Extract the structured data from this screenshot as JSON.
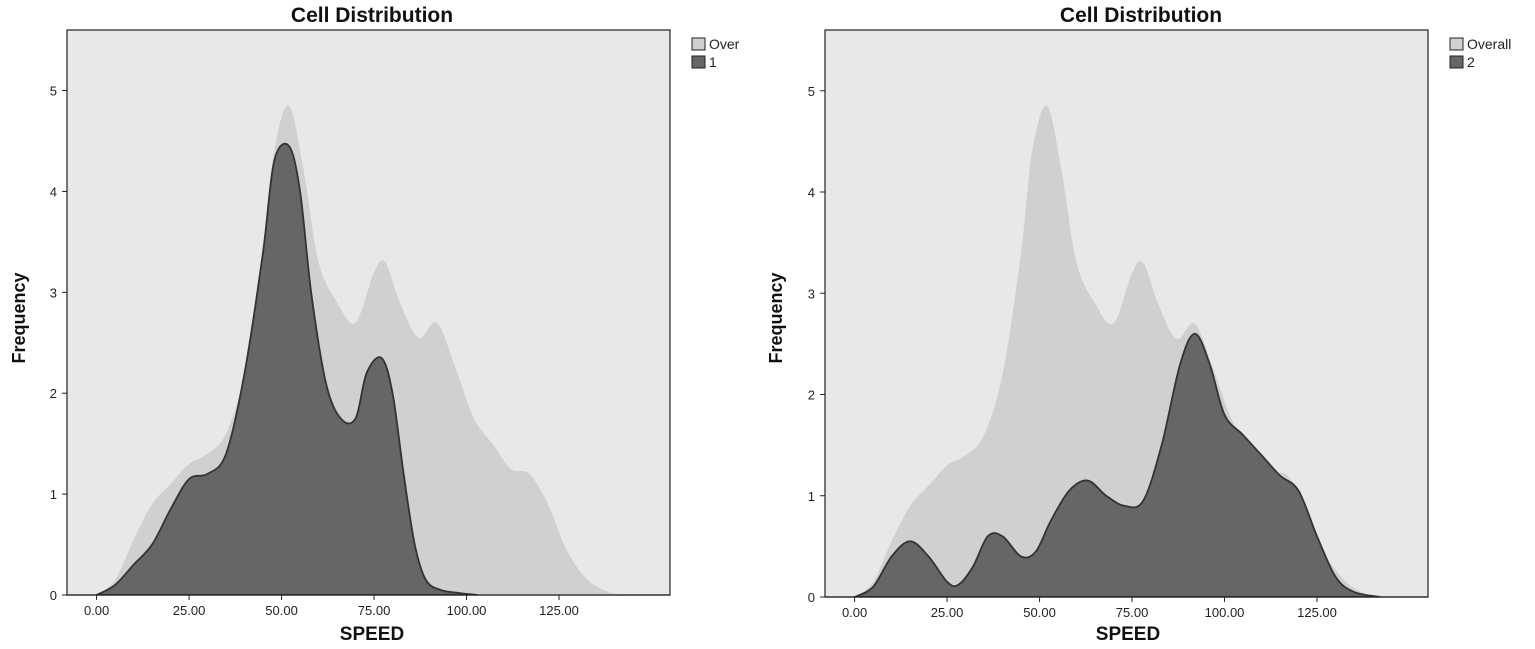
{
  "chart_data": [
    {
      "type": "area",
      "title": "Cell Distribution",
      "xlabel": "SPEED",
      "ylabel": "Frequency",
      "xlim": [
        -8,
        155
      ],
      "ylim": [
        0,
        5.6
      ],
      "xticks": [
        "0.00",
        "25.00",
        "50.00",
        "75.00",
        "100.00",
        "125.00"
      ],
      "xtick_values": [
        0,
        25,
        50,
        75,
        100,
        125
      ],
      "yticks": [
        "0",
        "1",
        "2",
        "3",
        "4",
        "5"
      ],
      "ytick_values": [
        0,
        1,
        2,
        3,
        4,
        5
      ],
      "grid": false,
      "legend_position": "top-right",
      "colors": {
        "overall": "#d0d0d0",
        "group": "#666666",
        "background": "#e8e8e8",
        "outline": "#333333"
      },
      "series": [
        {
          "name": "Over",
          "x": [
            0,
            5,
            10,
            15,
            20,
            25,
            30,
            35,
            40,
            45,
            48,
            52,
            56,
            60,
            65,
            70,
            75,
            78,
            82,
            87,
            92,
            97,
            102,
            107,
            112,
            117,
            122,
            127,
            132,
            137,
            142
          ],
          "values": [
            0,
            0.15,
            0.55,
            0.9,
            1.1,
            1.3,
            1.4,
            1.6,
            2.2,
            3.4,
            4.4,
            4.85,
            4.2,
            3.3,
            2.9,
            2.7,
            3.2,
            3.3,
            2.9,
            2.55,
            2.7,
            2.25,
            1.75,
            1.5,
            1.25,
            1.2,
            0.9,
            0.45,
            0.18,
            0.05,
            0
          ]
        },
        {
          "name": "1",
          "x": [
            0,
            5,
            10,
            15,
            20,
            25,
            30,
            35,
            40,
            45,
            48,
            52,
            55,
            58,
            62,
            66,
            70,
            73,
            77,
            80,
            83,
            86,
            89,
            93,
            98,
            103
          ],
          "values": [
            0,
            0.1,
            0.3,
            0.5,
            0.85,
            1.15,
            1.2,
            1.4,
            2.2,
            3.4,
            4.3,
            4.45,
            4.0,
            3.0,
            2.1,
            1.75,
            1.75,
            2.2,
            2.35,
            2.0,
            1.2,
            0.5,
            0.15,
            0.05,
            0.02,
            0
          ]
        }
      ]
    },
    {
      "type": "area",
      "title": "Cell Distribution",
      "xlabel": "SPEED",
      "ylabel": "Frequency",
      "xlim": [
        -8,
        155
      ],
      "ylim": [
        0,
        5.6
      ],
      "xticks": [
        "0.00",
        "25.00",
        "50.00",
        "75.00",
        "100.00",
        "125.00"
      ],
      "xtick_values": [
        0,
        25,
        50,
        75,
        100,
        125
      ],
      "yticks": [
        "0",
        "1",
        "2",
        "3",
        "4",
        "5"
      ],
      "ytick_values": [
        0,
        1,
        2,
        3,
        4,
        5
      ],
      "grid": false,
      "legend_position": "top-right",
      "colors": {
        "overall": "#d0d0d0",
        "group": "#666666",
        "background": "#e8e8e8",
        "outline": "#333333"
      },
      "series": [
        {
          "name": "Overall",
          "x": [
            0,
            5,
            10,
            15,
            20,
            25,
            30,
            35,
            40,
            45,
            48,
            52,
            56,
            60,
            65,
            70,
            75,
            78,
            82,
            87,
            92,
            97,
            102,
            107,
            112,
            117,
            122,
            127,
            132,
            137,
            142
          ],
          "values": [
            0,
            0.15,
            0.55,
            0.9,
            1.1,
            1.3,
            1.4,
            1.6,
            2.2,
            3.4,
            4.4,
            4.85,
            4.2,
            3.3,
            2.9,
            2.7,
            3.2,
            3.3,
            2.9,
            2.55,
            2.7,
            2.25,
            1.75,
            1.5,
            1.25,
            1.2,
            0.9,
            0.45,
            0.18,
            0.05,
            0
          ]
        },
        {
          "name": "2",
          "x": [
            0,
            5,
            10,
            15,
            20,
            25,
            28,
            32,
            36,
            40,
            45,
            49,
            53,
            58,
            63,
            68,
            73,
            78,
            83,
            88,
            92,
            96,
            100,
            105,
            110,
            115,
            120,
            125,
            130,
            135,
            142
          ],
          "values": [
            0,
            0.1,
            0.4,
            0.55,
            0.4,
            0.15,
            0.12,
            0.3,
            0.6,
            0.6,
            0.4,
            0.45,
            0.75,
            1.05,
            1.15,
            1.0,
            0.9,
            0.95,
            1.5,
            2.3,
            2.6,
            2.3,
            1.8,
            1.6,
            1.4,
            1.2,
            1.05,
            0.6,
            0.2,
            0.05,
            0
          ]
        }
      ]
    }
  ]
}
